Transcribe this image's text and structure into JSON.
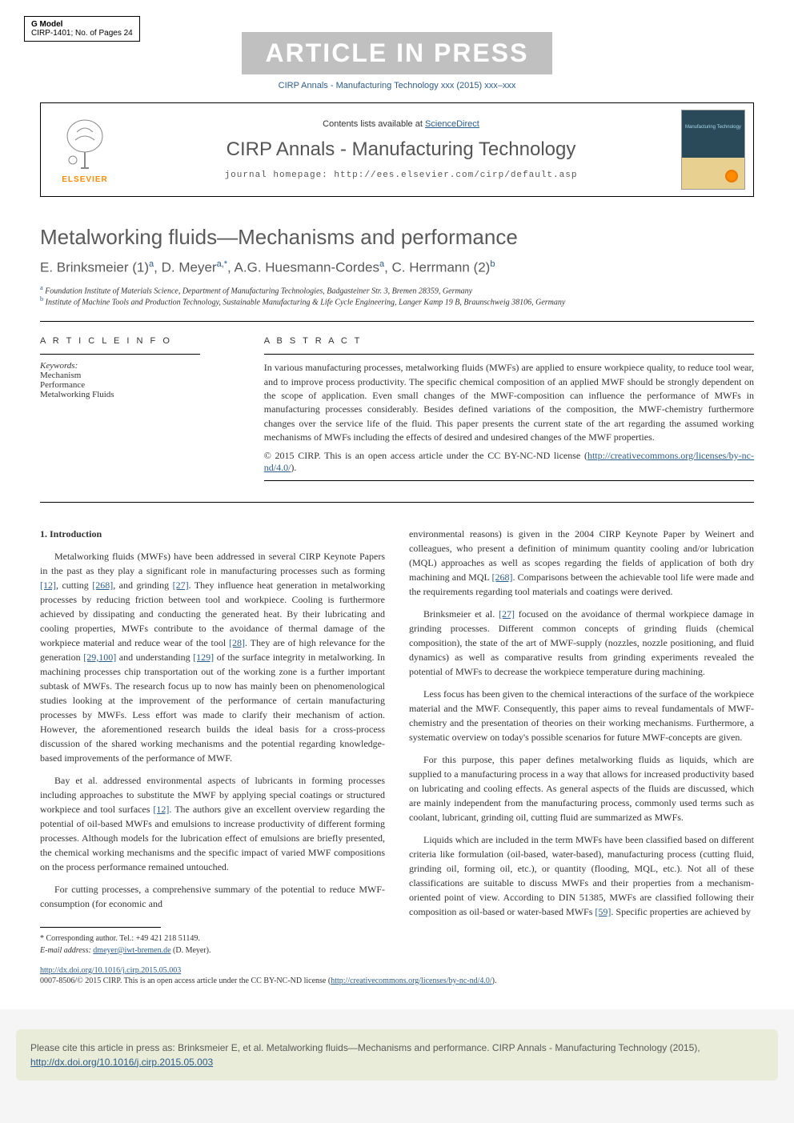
{
  "gmodel": {
    "line1": "G Model",
    "line2": "CIRP-1401; No. of Pages 24"
  },
  "banner": "ARTICLE IN PRESS",
  "journal_ref": "CIRP Annals - Manufacturing Technology xxx (2015) xxx–xxx",
  "header": {
    "contents_prefix": "Contents lists available at ",
    "contents_link": "ScienceDirect",
    "journal_name": "CIRP Annals - Manufacturing Technology",
    "homepage": "journal homepage: http://ees.elsevier.com/cirp/default.asp",
    "elsevier": "ELSEVIER",
    "cover_label": "Manufacturing Technology"
  },
  "article": {
    "title": "Metalworking fluids—Mechanisms and performance",
    "authors_html": "E. Brinksmeier  (1)<sup>a</sup>, D. Meyer<sup>a,*</sup>, A.G. Huesmann-Cordes<sup>a</sup>, C. Herrmann  (2)<sup>b</sup>",
    "affiliations": [
      {
        "sup": "a",
        "text": "Foundation Institute of Materials Science, Department of Manufacturing Technologies, Badgasteiner Str. 3, Bremen 28359, Germany"
      },
      {
        "sup": "b",
        "text": "Institute of Machine Tools and Production Technology, Sustainable Manufacturing & Life Cycle Engineering, Langer Kamp 19 B, Braunschweig 38106, Germany"
      }
    ]
  },
  "info": {
    "header": "A R T I C L E  I N F O",
    "keywords_label": "Keywords:",
    "keywords": [
      "Mechanism",
      "Performance",
      "Metalworking Fluids"
    ]
  },
  "abstract": {
    "header": "A B S T R A C T",
    "text": "In various manufacturing processes, metalworking fluids (MWFs) are applied to ensure workpiece quality, to reduce tool wear, and to improve process productivity. The specific chemical composition of an applied MWF should be strongly dependent on the scope of application. Even small changes of the MWF-composition can influence the performance of MWFs in manufacturing processes considerably. Besides defined variations of the composition, the MWF-chemistry furthermore changes over the service life of the fluid. This paper presents the current state of the art regarding the assumed working mechanisms of MWFs including the effects of desired and undesired changes of the MWF properties.",
    "copyright": "© 2015 CIRP. This is an open access article under the CC BY-NC-ND license (",
    "license_url": "http://creativecommons.org/licenses/by-nc-nd/4.0/",
    "close_paren": ")."
  },
  "section1": {
    "heading": "1. Introduction",
    "p1_a": "Metalworking fluids (MWFs) have been addressed in several CIRP Keynote Papers in the past as they play a significant role in manufacturing processes such as forming ",
    "ref12": "[12]",
    "p1_b": ", cutting ",
    "ref268": "[268]",
    "p1_c": ", and grinding ",
    "ref27": "[27]",
    "p1_d": ". They influence heat generation in metalworking processes by reducing friction between tool and workpiece. Cooling is furthermore achieved by dissipating and conducting the generated heat. By their lubricating and cooling properties, MWFs contribute to the avoidance of thermal damage of the workpiece material and reduce wear of the tool ",
    "ref28": "[28]",
    "p1_e": ". They are of high relevance for the generation ",
    "ref29_100": "[29,100]",
    "p1_f": " and understanding ",
    "ref129": "[129]",
    "p1_g": " of the surface integrity in metalworking. In machining processes chip transportation out of the working zone is a further important subtask of MWFs. The research focus up to now has mainly been on phenomenological studies looking at the improvement of the performance of certain manufacturing processes by MWFs. Less effort was made to clarify their mechanism of action. However, the aforementioned research builds the ideal basis for a cross-process discussion of the shared working mechanisms and the potential regarding knowledge-based improvements of the performance of MWF.",
    "p2_a": "Bay et al. addressed environmental aspects of lubricants in forming processes including approaches to substitute the MWF by applying special coatings or structured workpiece and tool surfaces ",
    "p2_b": ". The authors give an excellent overview regarding the potential of oil-based MWFs and emulsions to increase productivity of different forming processes. Although models for the lubrication effect of emulsions are briefly presented, the chemical working mechanisms and the specific impact of varied MWF compositions on the process performance remained untouched.",
    "p3": "For cutting processes, a comprehensive summary of the potential to reduce MWF-consumption (for economic and"
  },
  "col2": {
    "p1": "environmental reasons) is given in the 2004 CIRP Keynote Paper by Weinert and colleagues, who present a definition of minimum quantity cooling and/or lubrication (MQL) approaches as well as scopes regarding the fields of application of both dry machining and MQL ",
    "ref268b": "[268]",
    "p1_b": ". Comparisons between the achievable tool life were made and the requirements regarding tool materials and coatings were derived.",
    "p2_a": "Brinksmeier et al. ",
    "ref27b": "[27]",
    "p2_b": " focused on the avoidance of thermal workpiece damage in grinding processes. Different common concepts of grinding fluids (chemical composition), the state of the art of MWF-supply (nozzles, nozzle positioning, and fluid dynamics) as well as comparative results from grinding experiments revealed the potential of MWFs to decrease the workpiece temperature during machining.",
    "p3": "Less focus has been given to the chemical interactions of the surface of the workpiece material and the MWF. Consequently, this paper aims to reveal fundamentals of MWF-chemistry and the presentation of theories on their working mechanisms. Furthermore, a systematic overview on today's possible scenarios for future MWF-concepts are given.",
    "p4": "For this purpose, this paper defines metalworking fluids as liquids, which are supplied to a manufacturing process in a way that allows for increased productivity based on lubricating and cooling effects. As general aspects of the fluids are discussed, which are mainly independent from the manufacturing process, commonly used terms such as coolant, lubricant, grinding oil, cutting fluid are summarized as MWFs.",
    "p5_a": "Liquids which are included in the term MWFs have been classified based on different criteria like formulation (oil-based, water-based), manufacturing process (cutting fluid, grinding oil, forming oil, etc.), or quantity (flooding, MQL, etc.). Not all of these classifications are suitable to discuss MWFs and their properties from a mechanism-oriented point of view. According to DIN 51385, MWFs are classified following their composition as oil-based or water-based MWFs ",
    "ref59": "[59]",
    "p5_b": ". Specific properties are achieved by"
  },
  "footnotes": {
    "corresponding": "* Corresponding author. Tel.: +49 421 218 51149.",
    "email_label": "E-mail address: ",
    "email": "dmeyer@iwt-bremen.de",
    "email_suffix": " (D. Meyer)."
  },
  "doi": {
    "url": "http://dx.doi.org/10.1016/j.cirp.2015.05.003",
    "copyright": "0007-8506/© 2015 CIRP. This is an open access article under the CC BY-NC-ND license (",
    "license_url": "http://creativecommons.org/licenses/by-nc-nd/4.0/",
    "close": ")."
  },
  "citebox": {
    "text_a": "Please cite this article in press as: Brinksmeier E, et al. Metalworking fluids—Mechanisms and performance. CIRP Annals - Manufacturing Technology (2015), ",
    "url": "http://dx.doi.org/10.1016/j.cirp.2015.05.003"
  },
  "colors": {
    "link": "#2e5c8a",
    "elsevier_orange": "#ff8c00",
    "citebox_bg": "#e8ecd8",
    "banner_bg": "#c0c0c0",
    "heading_gray": "#5a5a5a"
  }
}
